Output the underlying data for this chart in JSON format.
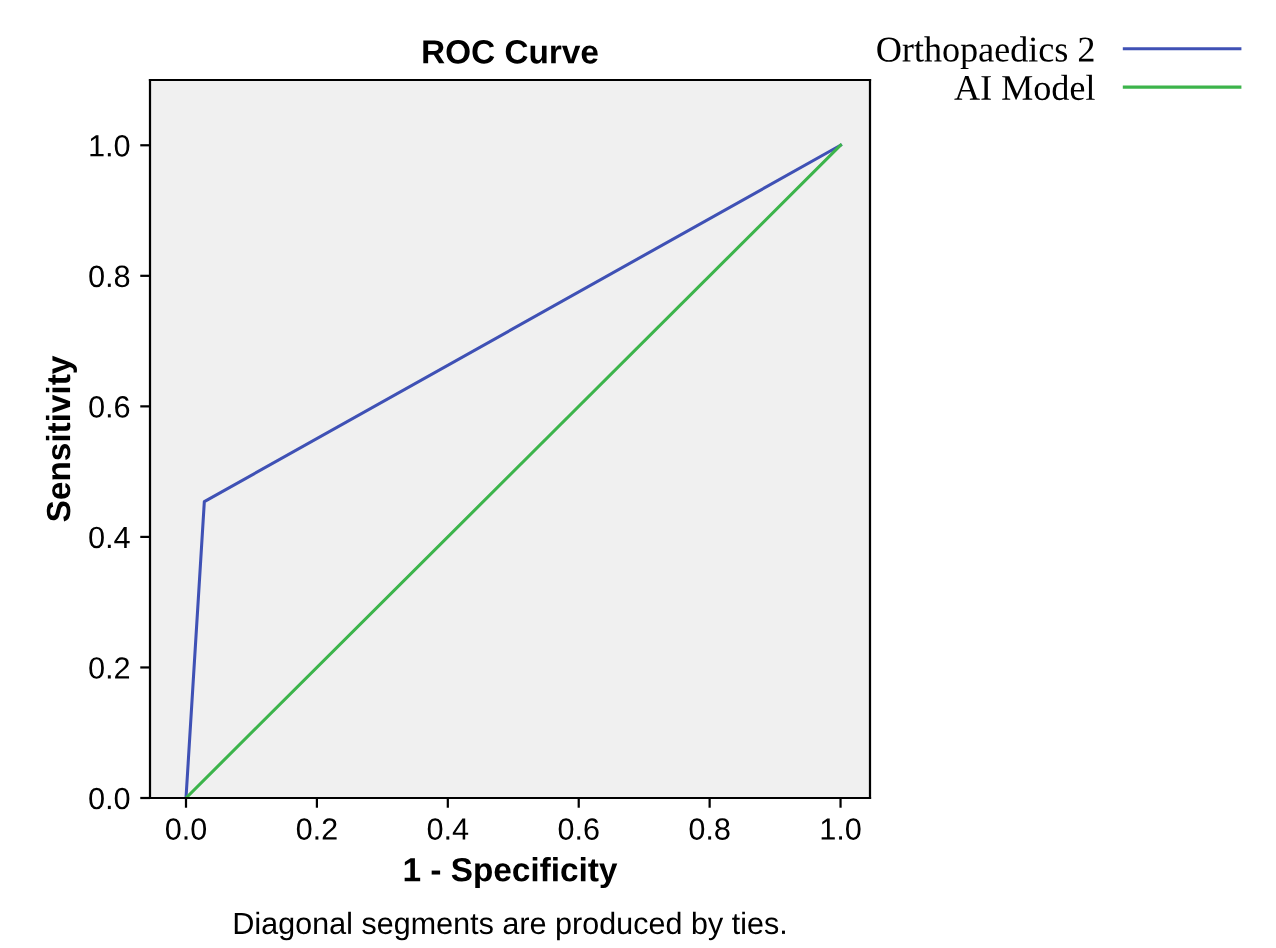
{
  "chart_data": {
    "type": "line",
    "title": "ROC Curve",
    "xlabel": "1 - Specificity",
    "ylabel": "Sensitivity",
    "annotations": [
      "Diagonal segments are produced by ties."
    ],
    "series": [
      {
        "name": "Orthopaedics 2",
        "color": "#3f51b5",
        "x": [
          0,
          0.028,
          1
        ],
        "values": [
          0,
          0.454,
          1
        ]
      },
      {
        "name": "AI Model",
        "color": "#3cb44b",
        "x": [
          0,
          1
        ],
        "values": [
          0,
          1
        ]
      }
    ],
    "xlim": [
      -0.055,
      1.045
    ],
    "ylim": [
      0,
      1.1
    ],
    "xticks": [
      {
        "value": 0,
        "label": "0.0"
      },
      0.2,
      0.4,
      0.6,
      0.8,
      {
        "value": 1,
        "label": "1.0"
      }
    ],
    "yticks": [
      {
        "value": 0,
        "label": "0.0"
      },
      0.2,
      0.4,
      0.6,
      0.8,
      {
        "value": 1,
        "label": "1.0"
      }
    ],
    "grid": false,
    "legend": "top right",
    "marker": "none",
    "line_style": "solid"
  }
}
